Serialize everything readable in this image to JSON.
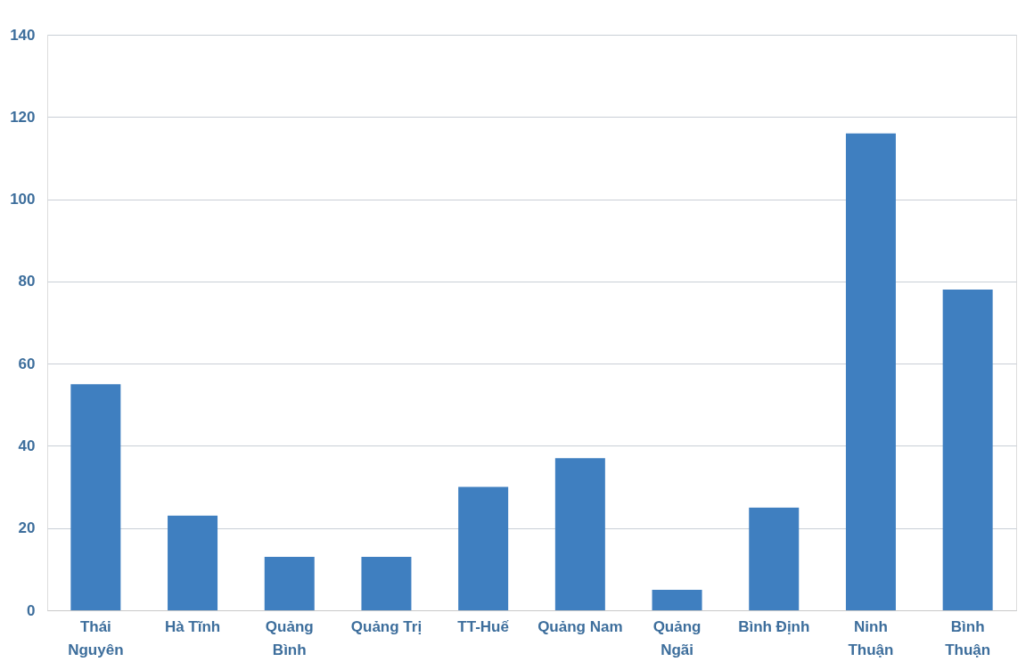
{
  "chart_data": {
    "type": "bar",
    "categories": [
      "Thái Nguyên",
      "Hà Tĩnh",
      "Quảng Bình",
      "Quảng Trị",
      "TT-Huế",
      "Quảng Nam",
      "Quảng Ngãi",
      "Bình Định",
      "Ninh Thuận",
      "Bình Thuận"
    ],
    "values": [
      55,
      23,
      13,
      13,
      30,
      37,
      5,
      25,
      116,
      78
    ],
    "color": "#3f7fc0",
    "ylim": [
      0,
      140
    ],
    "yticks": [
      0,
      20,
      40,
      60,
      80,
      100,
      120,
      140
    ],
    "grid": "y"
  }
}
